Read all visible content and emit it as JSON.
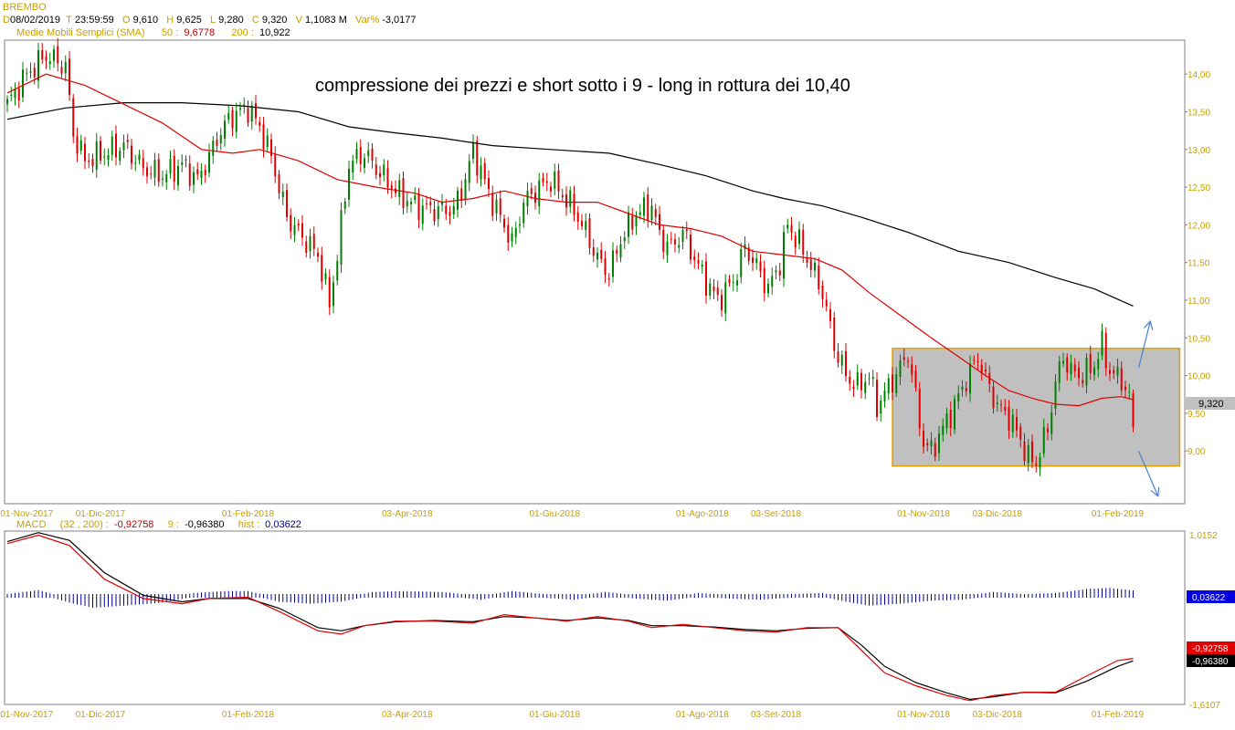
{
  "header": {
    "symbol": "BREMBO",
    "d_label": "D",
    "date": "08/02/2019",
    "t_label": "T",
    "time": "23:59:59",
    "o_label": "O",
    "open": "9,610",
    "h_label": "H",
    "high": "9,625",
    "l_label": "L",
    "low": "9,280",
    "c_label": "C",
    "close": "9,320",
    "v_label": "V",
    "volume": "1,1083 M",
    "var_label": "Var%",
    "var_value": "-3,0177",
    "sma_label": "Medie Mobili Semplici (SMA)",
    "sma50_label": "50 :",
    "sma50_value": "9,6778",
    "sma200_label": "200 :",
    "sma200_value": "10,922"
  },
  "macd_header": {
    "label": "MACD",
    "params": "(32 , 200) :",
    "macd_value": "-0,92758",
    "signal_label": "9 :",
    "signal_value": "-0,96380",
    "hist_label": "hist :",
    "hist_value": "0,03622"
  },
  "annotation": "compressione dei prezzi e short sotto i 9 - long in rottura dei 10,40",
  "price_badge": "9,320",
  "colors": {
    "up": "#008000",
    "down": "#e00000",
    "sma50": "#e00000",
    "sma200": "#000000",
    "box_fill": "#c0c0c0",
    "box_border": "#e0a000",
    "arrow": "#4a80d0",
    "axis_text": "#c8a000",
    "hist": "#000090"
  },
  "chart_data": [
    {
      "type": "candlestick",
      "title": "BREMBO",
      "ylim": [
        8.3,
        14.45
      ],
      "y_ticks": [
        "14,00",
        "13,50",
        "13,00",
        "12,50",
        "12,00",
        "11,50",
        "11,00",
        "10,50",
        "10,00",
        "9,50",
        "9,00"
      ],
      "x_ticks": [
        "01-Nov-2017",
        "01-Dic-2017",
        "01-Feb-2018",
        "03-Apr-2018",
        "01-Giu-2018",
        "01-Ago-2018",
        "03-Set-2018",
        "01-Nov-2018",
        "03-Dic-2018",
        "01-Feb-2019"
      ],
      "close_path": [
        [
          0,
          13.6
        ],
        [
          5,
          14.0
        ],
        [
          10,
          14.25
        ],
        [
          15,
          14.1
        ],
        [
          17,
          13.2
        ],
        [
          20,
          12.85
        ],
        [
          25,
          12.95
        ],
        [
          30,
          13.05
        ],
        [
          35,
          12.75
        ],
        [
          40,
          12.65
        ],
        [
          45,
          12.8
        ],
        [
          49,
          12.6
        ],
        [
          52,
          12.9
        ],
        [
          55,
          13.25
        ],
        [
          58,
          13.45
        ],
        [
          62,
          13.55
        ],
        [
          65,
          13.3
        ],
        [
          68,
          12.9
        ],
        [
          72,
          12.1
        ],
        [
          75,
          11.9
        ],
        [
          80,
          11.6
        ],
        [
          83,
          10.95
        ],
        [
          85,
          11.6
        ],
        [
          88,
          12.8
        ],
        [
          92,
          12.95
        ],
        [
          95,
          12.75
        ],
        [
          100,
          12.45
        ],
        [
          105,
          12.25
        ],
        [
          110,
          12.2
        ],
        [
          115,
          12.2
        ],
        [
          118,
          12.6
        ],
        [
          120,
          13.0
        ],
        [
          122,
          12.7
        ],
        [
          125,
          12.3
        ],
        [
          128,
          12.0
        ],
        [
          130,
          11.75
        ],
        [
          133,
          12.3
        ],
        [
          136,
          12.45
        ],
        [
          140,
          12.6
        ],
        [
          143,
          12.4
        ],
        [
          146,
          12.2
        ],
        [
          149,
          11.9
        ],
        [
          152,
          11.55
        ],
        [
          155,
          11.35
        ],
        [
          158,
          11.8
        ],
        [
          162,
          12.15
        ],
        [
          166,
          12.25
        ],
        [
          168,
          11.85
        ],
        [
          171,
          11.7
        ],
        [
          174,
          11.9
        ],
        [
          177,
          11.55
        ],
        [
          180,
          11.25
        ],
        [
          183,
          11.0
        ],
        [
          187,
          11.25
        ],
        [
          190,
          11.7
        ],
        [
          193,
          11.45
        ],
        [
          196,
          11.15
        ],
        [
          199,
          11.5
        ],
        [
          201,
          12.0
        ],
        [
          204,
          11.75
        ],
        [
          207,
          11.45
        ],
        [
          210,
          11.1
        ],
        [
          213,
          10.4
        ],
        [
          216,
          10.0
        ],
        [
          219,
          9.85
        ],
        [
          222,
          10.0
        ],
        [
          224,
          9.6
        ],
        [
          227,
          9.85
        ],
        [
          230,
          10.1
        ],
        [
          232,
          10.3
        ],
        [
          234,
          9.7
        ],
        [
          236,
          9.1
        ],
        [
          238,
          9.0
        ],
        [
          241,
          9.3
        ],
        [
          244,
          9.6
        ],
        [
          247,
          9.95
        ],
        [
          250,
          10.25
        ],
        [
          252,
          9.95
        ],
        [
          255,
          9.6
        ],
        [
          258,
          9.45
        ],
        [
          261,
          9.15
        ],
        [
          263,
          8.9
        ],
        [
          265,
          8.85
        ],
        [
          268,
          9.3
        ],
        [
          270,
          9.9
        ],
        [
          272,
          10.25
        ],
        [
          274,
          10.05
        ],
        [
          277,
          10.0
        ],
        [
          280,
          10.15
        ],
        [
          282,
          10.4
        ],
        [
          284,
          10.05
        ],
        [
          287,
          9.95
        ],
        [
          289,
          9.7
        ],
        [
          290,
          9.32
        ]
      ],
      "sma50_path": [
        [
          0,
          13.75
        ],
        [
          10,
          14.0
        ],
        [
          20,
          13.85
        ],
        [
          30,
          13.6
        ],
        [
          40,
          13.35
        ],
        [
          50,
          13.0
        ],
        [
          58,
          12.95
        ],
        [
          65,
          13.0
        ],
        [
          75,
          12.85
        ],
        [
          85,
          12.6
        ],
        [
          95,
          12.5
        ],
        [
          105,
          12.42
        ],
        [
          112,
          12.3
        ],
        [
          120,
          12.35
        ],
        [
          128,
          12.45
        ],
        [
          136,
          12.35
        ],
        [
          144,
          12.3
        ],
        [
          152,
          12.3
        ],
        [
          160,
          12.15
        ],
        [
          168,
          12.0
        ],
        [
          176,
          11.95
        ],
        [
          184,
          11.85
        ],
        [
          192,
          11.65
        ],
        [
          200,
          11.6
        ],
        [
          208,
          11.55
        ],
        [
          215,
          11.4
        ],
        [
          222,
          11.1
        ],
        [
          230,
          10.8
        ],
        [
          238,
          10.5
        ],
        [
          245,
          10.25
        ],
        [
          252,
          10.0
        ],
        [
          258,
          9.8
        ],
        [
          264,
          9.7
        ],
        [
          270,
          9.62
        ],
        [
          276,
          9.6
        ],
        [
          282,
          9.7
        ],
        [
          287,
          9.72
        ],
        [
          290,
          9.68
        ]
      ],
      "sma200_path": [
        [
          0,
          13.4
        ],
        [
          15,
          13.55
        ],
        [
          30,
          13.62
        ],
        [
          45,
          13.62
        ],
        [
          60,
          13.58
        ],
        [
          75,
          13.5
        ],
        [
          88,
          13.3
        ],
        [
          100,
          13.22
        ],
        [
          112,
          13.15
        ],
        [
          125,
          13.05
        ],
        [
          140,
          13.0
        ],
        [
          155,
          12.95
        ],
        [
          168,
          12.8
        ],
        [
          180,
          12.65
        ],
        [
          192,
          12.45
        ],
        [
          200,
          12.35
        ],
        [
          210,
          12.25
        ],
        [
          220,
          12.1
        ],
        [
          232,
          11.9
        ],
        [
          245,
          11.65
        ],
        [
          258,
          11.5
        ],
        [
          270,
          11.3
        ],
        [
          280,
          11.15
        ],
        [
          290,
          10.922
        ]
      ],
      "range_box": {
        "top": 10.36,
        "bottom": 8.8,
        "x_start": 228,
        "x_end": 302
      },
      "breakout_arrows": [
        {
          "from": [
            290,
            10.1
          ],
          "to": [
            293,
            10.72
          ],
          "direction": "up"
        },
        {
          "from": [
            290,
            9.0
          ],
          "to": [
            295,
            8.4
          ],
          "direction": "down"
        }
      ],
      "last_close": 9.32
    },
    {
      "type": "line",
      "title": "MACD",
      "ylim": [
        -1.6107,
        1.0152
      ],
      "y_ticks": [
        "1,0152",
        "-1,6107"
      ],
      "series": [
        {
          "name": "MACD",
          "color": "#e00000",
          "values_path": [
            [
              0,
              0.85
            ],
            [
              8,
              0.98
            ],
            [
              16,
              0.82
            ],
            [
              25,
              0.3
            ],
            [
              35,
              0.0
            ],
            [
              45,
              -0.08
            ],
            [
              52,
              0.0
            ],
            [
              62,
              0.02
            ],
            [
              70,
              -0.2
            ],
            [
              80,
              -0.5
            ],
            [
              86,
              -0.55
            ],
            [
              92,
              -0.42
            ],
            [
              100,
              -0.35
            ],
            [
              110,
              -0.35
            ],
            [
              120,
              -0.38
            ],
            [
              128,
              -0.25
            ],
            [
              136,
              -0.3
            ],
            [
              144,
              -0.35
            ],
            [
              152,
              -0.28
            ],
            [
              160,
              -0.35
            ],
            [
              166,
              -0.45
            ],
            [
              174,
              -0.4
            ],
            [
              182,
              -0.45
            ],
            [
              190,
              -0.5
            ],
            [
              198,
              -0.52
            ],
            [
              206,
              -0.45
            ],
            [
              214,
              -0.45
            ],
            [
              220,
              -0.8
            ],
            [
              226,
              -1.15
            ],
            [
              234,
              -1.35
            ],
            [
              242,
              -1.5
            ],
            [
              248,
              -1.58
            ],
            [
              254,
              -1.5
            ],
            [
              262,
              -1.45
            ],
            [
              270,
              -1.45
            ],
            [
              278,
              -1.2
            ],
            [
              286,
              -0.96
            ],
            [
              290,
              -0.92758
            ]
          ]
        },
        {
          "name": "signal 9",
          "color": "#000000",
          "values_path": [
            [
              0,
              0.88
            ],
            [
              8,
              1.02
            ],
            [
              16,
              0.9
            ],
            [
              25,
              0.4
            ],
            [
              35,
              0.05
            ],
            [
              45,
              -0.05
            ],
            [
              52,
              0.0
            ],
            [
              62,
              0.0
            ],
            [
              70,
              -0.15
            ],
            [
              80,
              -0.45
            ],
            [
              86,
              -0.5
            ],
            [
              92,
              -0.42
            ],
            [
              100,
              -0.36
            ],
            [
              110,
              -0.34
            ],
            [
              120,
              -0.36
            ],
            [
              128,
              -0.28
            ],
            [
              136,
              -0.3
            ],
            [
              144,
              -0.34
            ],
            [
              152,
              -0.3
            ],
            [
              160,
              -0.34
            ],
            [
              166,
              -0.42
            ],
            [
              174,
              -0.42
            ],
            [
              182,
              -0.44
            ],
            [
              190,
              -0.48
            ],
            [
              198,
              -0.5
            ],
            [
              206,
              -0.46
            ],
            [
              214,
              -0.45
            ],
            [
              220,
              -0.72
            ],
            [
              226,
              -1.05
            ],
            [
              234,
              -1.3
            ],
            [
              242,
              -1.46
            ],
            [
              248,
              -1.56
            ],
            [
              254,
              -1.52
            ],
            [
              262,
              -1.45
            ],
            [
              270,
              -1.46
            ],
            [
              278,
              -1.28
            ],
            [
              286,
              -1.05
            ],
            [
              290,
              -0.9638
            ]
          ]
        },
        {
          "name": "hist",
          "color": "#000090",
          "values_path": [
            [
              0,
              0.0
            ],
            [
              8,
              0.04
            ],
            [
              16,
              -0.05
            ],
            [
              22,
              -0.1
            ],
            [
              30,
              -0.08
            ],
            [
              40,
              -0.05
            ],
            [
              48,
              0.01
            ],
            [
              56,
              0.03
            ],
            [
              62,
              0.03
            ],
            [
              70,
              -0.04
            ],
            [
              78,
              -0.06
            ],
            [
              86,
              -0.04
            ],
            [
              94,
              0.02
            ],
            [
              102,
              0.03
            ],
            [
              112,
              0.02
            ],
            [
              122,
              -0.02
            ],
            [
              130,
              0.03
            ],
            [
              138,
              0.0
            ],
            [
              146,
              -0.02
            ],
            [
              154,
              0.02
            ],
            [
              162,
              -0.01
            ],
            [
              170,
              -0.03
            ],
            [
              178,
              0.01
            ],
            [
              186,
              -0.01
            ],
            [
              194,
              -0.02
            ],
            [
              202,
              0.0
            ],
            [
              210,
              0.01
            ],
            [
              216,
              -0.04
            ],
            [
              222,
              -0.08
            ],
            [
              230,
              -0.06
            ],
            [
              238,
              -0.03
            ],
            [
              246,
              -0.02
            ],
            [
              254,
              0.02
            ],
            [
              262,
              0.0
            ],
            [
              270,
              0.01
            ],
            [
              278,
              0.05
            ],
            [
              284,
              0.06
            ],
            [
              290,
              0.03622
            ]
          ]
        }
      ],
      "badges": [
        "0,03622",
        "-0,92758",
        "-0,96380"
      ]
    }
  ]
}
